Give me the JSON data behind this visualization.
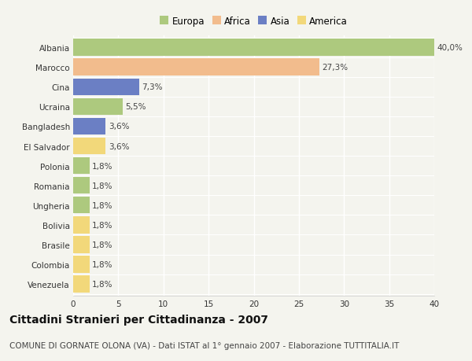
{
  "categories": [
    "Albania",
    "Marocco",
    "Cina",
    "Ucraina",
    "Bangladesh",
    "El Salvador",
    "Polonia",
    "Romania",
    "Ungheria",
    "Bolivia",
    "Brasile",
    "Colombia",
    "Venezuela"
  ],
  "values": [
    40.0,
    27.3,
    7.3,
    5.5,
    3.6,
    3.6,
    1.8,
    1.8,
    1.8,
    1.8,
    1.8,
    1.8,
    1.8
  ],
  "labels": [
    "40,0%",
    "27,3%",
    "7,3%",
    "5,5%",
    "3,6%",
    "3,6%",
    "1,8%",
    "1,8%",
    "1,8%",
    "1,8%",
    "1,8%",
    "1,8%",
    "1,8%"
  ],
  "colors": [
    "#adc97e",
    "#f2bc8d",
    "#6b7fc4",
    "#adc97e",
    "#6b7fc4",
    "#f2d87a",
    "#adc97e",
    "#adc97e",
    "#adc97e",
    "#f2d87a",
    "#f2d87a",
    "#f2d87a",
    "#f2d87a"
  ],
  "legend": [
    {
      "label": "Europa",
      "color": "#adc97e"
    },
    {
      "label": "Africa",
      "color": "#f2bc8d"
    },
    {
      "label": "Asia",
      "color": "#6b7fc4"
    },
    {
      "label": "America",
      "color": "#f2d87a"
    }
  ],
  "xlim": [
    0,
    40
  ],
  "xticks": [
    0,
    5,
    10,
    15,
    20,
    25,
    30,
    35,
    40
  ],
  "title": "Cittadini Stranieri per Cittadinanza - 2007",
  "subtitle": "COMUNE DI GORNATE OLONA (VA) - Dati ISTAT al 1° gennaio 2007 - Elaborazione TUTTITALIA.IT",
  "background_color": "#f4f4ee",
  "grid_color": "#ffffff",
  "bar_height": 0.85,
  "label_fontsize": 7.5,
  "tick_fontsize": 7.5,
  "title_fontsize": 10,
  "subtitle_fontsize": 7.5
}
